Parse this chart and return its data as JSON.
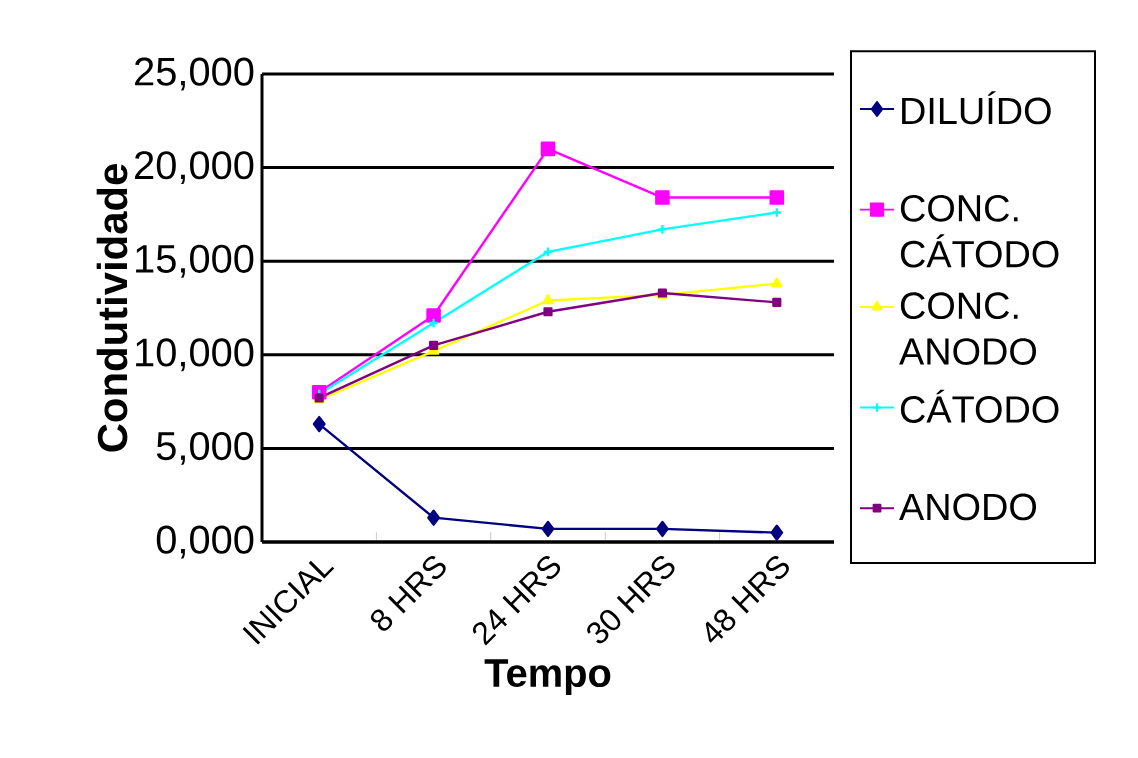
{
  "chart_data": {
    "type": "line",
    "xlabel": "Tempo",
    "ylabel": "Condutividade",
    "categories": [
      "INICIAL",
      "8 HRS",
      "24 HRS",
      "30 HRS",
      "48 HRS"
    ],
    "series": [
      {
        "name": "DILUÍDO",
        "color": "#000080",
        "marker": "diamond",
        "values": [
          6300,
          1300,
          700,
          700,
          500
        ]
      },
      {
        "name": "CONC. CÁTODO",
        "color": "#ff00ff",
        "marker": "square",
        "values": [
          8000,
          12100,
          21000,
          18400,
          18400
        ]
      },
      {
        "name": "CONC. ANODO",
        "color": "#ffff00",
        "marker": "triangle",
        "values": [
          7600,
          10200,
          12900,
          13200,
          13800
        ]
      },
      {
        "name": "CÁTODO",
        "color": "#00ffff",
        "marker": "cross",
        "values": [
          7900,
          11700,
          15500,
          16700,
          17600
        ]
      },
      {
        "name": "ANODO",
        "color": "#800080",
        "marker": "square",
        "values": [
          7700,
          10500,
          12300,
          13300,
          12800
        ]
      }
    ],
    "ylim": [
      0,
      25000
    ],
    "yticks": [
      {
        "value": 0,
        "label": "0,000"
      },
      {
        "value": 5000,
        "label": "5,000"
      },
      {
        "value": 10000,
        "label": "10,000"
      },
      {
        "value": 15000,
        "label": "15,000"
      },
      {
        "value": 20000,
        "label": "20,000"
      },
      {
        "value": 25000,
        "label": "25,000"
      }
    ],
    "grid": "y",
    "legend": "right",
    "line_style": "solid"
  }
}
